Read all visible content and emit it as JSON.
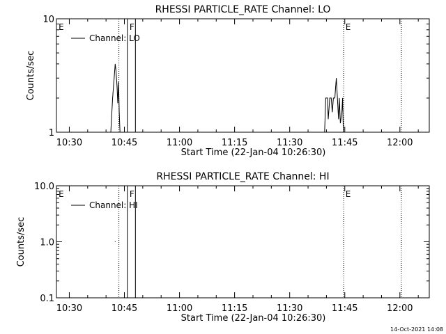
{
  "footer": {
    "timestamp": "14-Oct-2021 14:08"
  },
  "chart_data": [
    {
      "type": "line",
      "title": "RHESSI PARTICLE_RATE Channel: LO",
      "xlabel": "Start Time (22-Jan-04 10:26:30)",
      "ylabel": "Counts/sec",
      "y_scale": "log",
      "ylim": [
        1,
        10
      ],
      "y_ticks": [
        {
          "value": 1,
          "label": "1"
        },
        {
          "value": 10,
          "label": "10"
        }
      ],
      "x_range_minutes": [
        0,
        101.5
      ],
      "x_ticks": [
        {
          "minute": 3.5,
          "label": "10:30"
        },
        {
          "minute": 18.5,
          "label": "10:45"
        },
        {
          "minute": 33.5,
          "label": "11:00"
        },
        {
          "minute": 48.5,
          "label": "11:15"
        },
        {
          "minute": 63.5,
          "label": "11:30"
        },
        {
          "minute": 78.5,
          "label": "11:45"
        },
        {
          "minute": 93.5,
          "label": "12:00"
        }
      ],
      "legend": {
        "position": "top-left",
        "label": "Channel: LO"
      },
      "series": [
        {
          "name": "Channel: LO",
          "points": [
            [
              14.8,
              1
            ],
            [
              15.3,
              2.0
            ],
            [
              15.7,
              3.0
            ],
            [
              16.0,
              4.0
            ],
            [
              16.2,
              3.5
            ],
            [
              16.5,
              2.5
            ],
            [
              16.7,
              1.8
            ],
            [
              16.9,
              2.8
            ],
            [
              17.1,
              1.5
            ],
            [
              17.3,
              1
            ],
            [
              73.0,
              1
            ],
            [
              73.3,
              2.0
            ],
            [
              73.8,
              2.0
            ],
            [
              74.0,
              1.3
            ],
            [
              74.4,
              2.0
            ],
            [
              74.8,
              2.0
            ],
            [
              75.1,
              1.5
            ],
            [
              75.4,
              2.0
            ],
            [
              75.8,
              2.0
            ],
            [
              76.0,
              2.5
            ],
            [
              76.2,
              3.0
            ],
            [
              76.5,
              2.0
            ],
            [
              76.8,
              1.3
            ],
            [
              77.0,
              2.0
            ],
            [
              77.3,
              1.2
            ],
            [
              77.7,
              1.5
            ],
            [
              77.9,
              2.0
            ],
            [
              78.1,
              1
            ]
          ]
        }
      ],
      "vlines": [
        {
          "minute": 17.0,
          "style": "dotted"
        },
        {
          "minute": 19.3,
          "style": "solid"
        },
        {
          "minute": 21.5,
          "style": "solid"
        },
        {
          "minute": 78.2,
          "style": "dotted"
        },
        {
          "minute": 93.9,
          "style": "dotted"
        }
      ],
      "markers": [
        {
          "minute": 0.4,
          "label": "E"
        },
        {
          "minute": 19.7,
          "label": "F"
        },
        {
          "minute": 78.5,
          "label": "E"
        }
      ]
    },
    {
      "type": "line",
      "title": "RHESSI PARTICLE_RATE Channel: HI",
      "xlabel": "Start Time (22-Jan-04 10:26:30)",
      "ylabel": "Counts/sec",
      "y_scale": "log",
      "ylim": [
        0.1,
        10
      ],
      "y_ticks": [
        {
          "value": 0.1,
          "label": "0.1"
        },
        {
          "value": 1,
          "label": "1.0"
        },
        {
          "value": 10,
          "label": "10.0"
        }
      ],
      "x_range_minutes": [
        0,
        101.5
      ],
      "x_ticks": [
        {
          "minute": 3.5,
          "label": "10:30"
        },
        {
          "minute": 18.5,
          "label": "10:45"
        },
        {
          "minute": 33.5,
          "label": "11:00"
        },
        {
          "minute": 48.5,
          "label": "11:15"
        },
        {
          "minute": 63.5,
          "label": "11:30"
        },
        {
          "minute": 78.5,
          "label": "11:45"
        },
        {
          "minute": 93.5,
          "label": "12:00"
        }
      ],
      "legend": {
        "position": "top-left",
        "label": "Channel: HI"
      },
      "series": [
        {
          "name": "Channel: HI",
          "points": [
            [
              15.9,
              1.0
            ],
            [
              16.1,
              1.0
            ]
          ]
        }
      ],
      "vlines": [
        {
          "minute": 17.0,
          "style": "dotted"
        },
        {
          "minute": 19.3,
          "style": "solid"
        },
        {
          "minute": 21.5,
          "style": "solid"
        },
        {
          "minute": 78.2,
          "style": "dotted"
        },
        {
          "minute": 93.9,
          "style": "dotted"
        }
      ],
      "markers": [
        {
          "minute": 0.4,
          "label": "E"
        },
        {
          "minute": 19.7,
          "label": "F"
        },
        {
          "minute": 78.5,
          "label": "E"
        }
      ]
    }
  ]
}
